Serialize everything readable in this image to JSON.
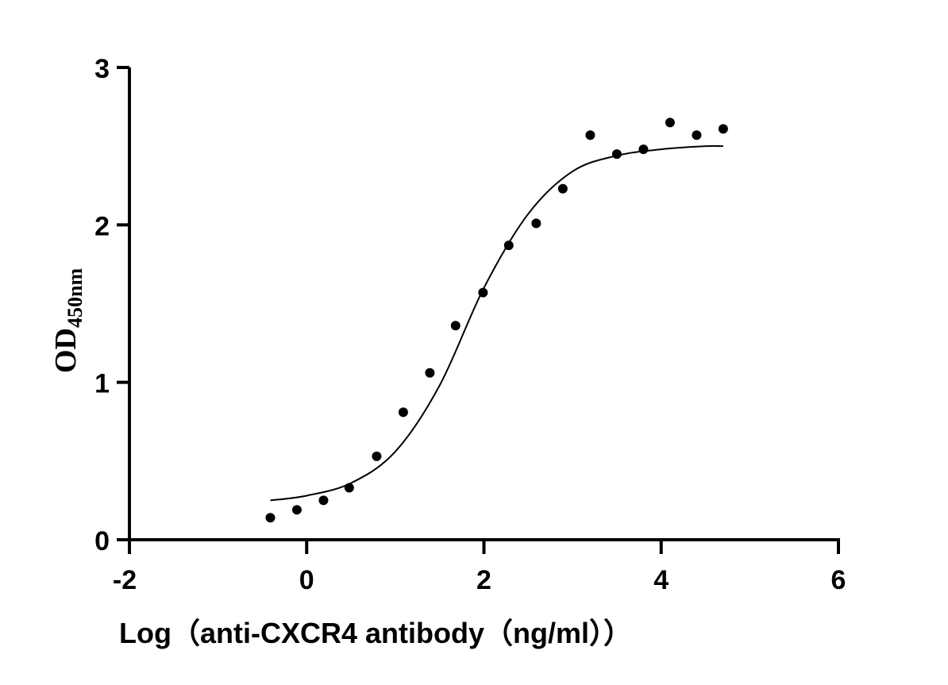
{
  "chart_data": {
    "type": "scatter",
    "title": "",
    "xlabel": "Log（anti-CXCR4 antibody（ng/ml））",
    "ylabel": "OD",
    "ylabel_subscript": "450nm",
    "xlim": [
      -2,
      6
    ],
    "ylim": [
      0,
      3
    ],
    "xticks": [
      "-2",
      "0",
      "2",
      "4",
      "6"
    ],
    "yticks": [
      "0",
      "1",
      "2",
      "3"
    ],
    "grid": false,
    "point_color": "#000000",
    "points": {
      "x": [
        -0.41,
        -0.11,
        0.19,
        0.48,
        0.79,
        1.09,
        1.39,
        1.68,
        1.99,
        2.28,
        2.59,
        2.89,
        3.2,
        3.5,
        3.8,
        4.1,
        4.4,
        4.7
      ],
      "y": [
        0.14,
        0.19,
        0.25,
        0.33,
        0.53,
        0.81,
        1.06,
        1.36,
        1.57,
        1.87,
        2.01,
        2.23,
        2.57,
        2.45,
        2.48,
        2.65,
        2.57,
        2.61
      ]
    },
    "fit_curve": {
      "x": [
        -0.41,
        0,
        0.5,
        1,
        1.5,
        2,
        2.5,
        3,
        3.5,
        4,
        4.5,
        4.7
      ],
      "y": [
        0.25,
        0.28,
        0.36,
        0.56,
        0.98,
        1.6,
        2.07,
        2.34,
        2.44,
        2.48,
        2.5,
        2.5
      ]
    }
  }
}
